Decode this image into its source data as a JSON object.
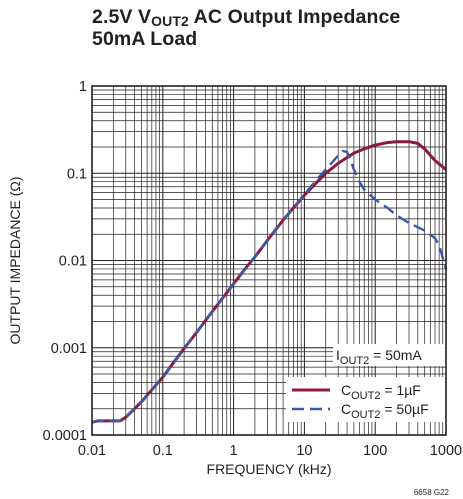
{
  "title": {
    "line1_prefix": "2.5V V",
    "line1_sub": "OUT2",
    "line1_suffix": " AC Output Impedance",
    "line2": "50mA Load"
  },
  "figure_id": "6658 G22",
  "colors": {
    "series1": "#8c1a3a",
    "series2": "#3a5aa8",
    "grid": "#231f20"
  },
  "chart_data": {
    "type": "line",
    "xlabel": "FREQUENCY (kHz)",
    "ylabel": "OUTPUT IMPEDANCE (Ω)",
    "xscale": "log",
    "yscale": "log",
    "xlim": [
      0.01,
      1000
    ],
    "ylim": [
      0.0001,
      1
    ],
    "grid": true,
    "legend_position": "bottom-right",
    "x_ticks": [
      {
        "value": 0.01,
        "label": "0.01"
      },
      {
        "value": 0.1,
        "label": "0.1"
      },
      {
        "value": 1,
        "label": "1"
      },
      {
        "value": 10,
        "label": "10"
      },
      {
        "value": 100,
        "label": "100"
      },
      {
        "value": 1000,
        "label": "1000"
      }
    ],
    "y_ticks": [
      {
        "value": 0.0001,
        "label": "0.0001"
      },
      {
        "value": 0.001,
        "label": "0.001"
      },
      {
        "value": 0.01,
        "label": "0.01"
      },
      {
        "value": 0.1,
        "label": "0.1"
      },
      {
        "value": 1,
        "label": "1"
      }
    ],
    "annotation": {
      "text_prefix": "I",
      "text_sub": "OUT2",
      "text_suffix": " = 50mA"
    },
    "series": [
      {
        "name_prefix": "C",
        "name_sub": "OUT2",
        "name_suffix": " = 1µF",
        "style": "solid",
        "x": [
          0.01,
          0.012,
          0.015,
          0.02,
          0.025,
          0.03,
          0.04,
          0.05,
          0.07,
          0.1,
          0.15,
          0.2,
          0.3,
          0.5,
          0.7,
          1,
          1.5,
          2,
          3,
          5,
          7,
          10,
          15,
          20,
          30,
          50,
          70,
          100,
          150,
          200,
          300,
          400,
          500,
          700,
          1000
        ],
        "y": [
          0.00014,
          0.000145,
          0.000145,
          0.000145,
          0.000145,
          0.00016,
          0.0002,
          0.00024,
          0.00033,
          0.00046,
          0.00072,
          0.00098,
          0.0015,
          0.0026,
          0.0037,
          0.0054,
          0.0083,
          0.011,
          0.017,
          0.029,
          0.04,
          0.056,
          0.079,
          0.1,
          0.13,
          0.17,
          0.19,
          0.21,
          0.225,
          0.23,
          0.23,
          0.22,
          0.19,
          0.14,
          0.11
        ]
      },
      {
        "name_prefix": "C",
        "name_sub": "OUT2",
        "name_suffix": " = 50µF",
        "style": "dashed",
        "x": [
          0.01,
          0.012,
          0.015,
          0.02,
          0.025,
          0.03,
          0.04,
          0.05,
          0.07,
          0.1,
          0.15,
          0.2,
          0.3,
          0.5,
          0.7,
          1,
          1.5,
          2,
          3,
          5,
          7,
          10,
          15,
          20,
          25,
          30,
          35,
          40,
          45,
          50,
          60,
          70,
          100,
          150,
          200,
          300,
          500,
          700,
          800,
          1000
        ],
        "y": [
          0.00014,
          0.000145,
          0.000145,
          0.000145,
          0.000145,
          0.00016,
          0.0002,
          0.00024,
          0.00033,
          0.00046,
          0.00072,
          0.00098,
          0.0015,
          0.0026,
          0.0037,
          0.0054,
          0.0083,
          0.011,
          0.017,
          0.029,
          0.04,
          0.057,
          0.085,
          0.11,
          0.135,
          0.16,
          0.18,
          0.175,
          0.14,
          0.11,
          0.08,
          0.065,
          0.05,
          0.04,
          0.033,
          0.027,
          0.022,
          0.018,
          0.015,
          0.008
        ]
      }
    ]
  }
}
